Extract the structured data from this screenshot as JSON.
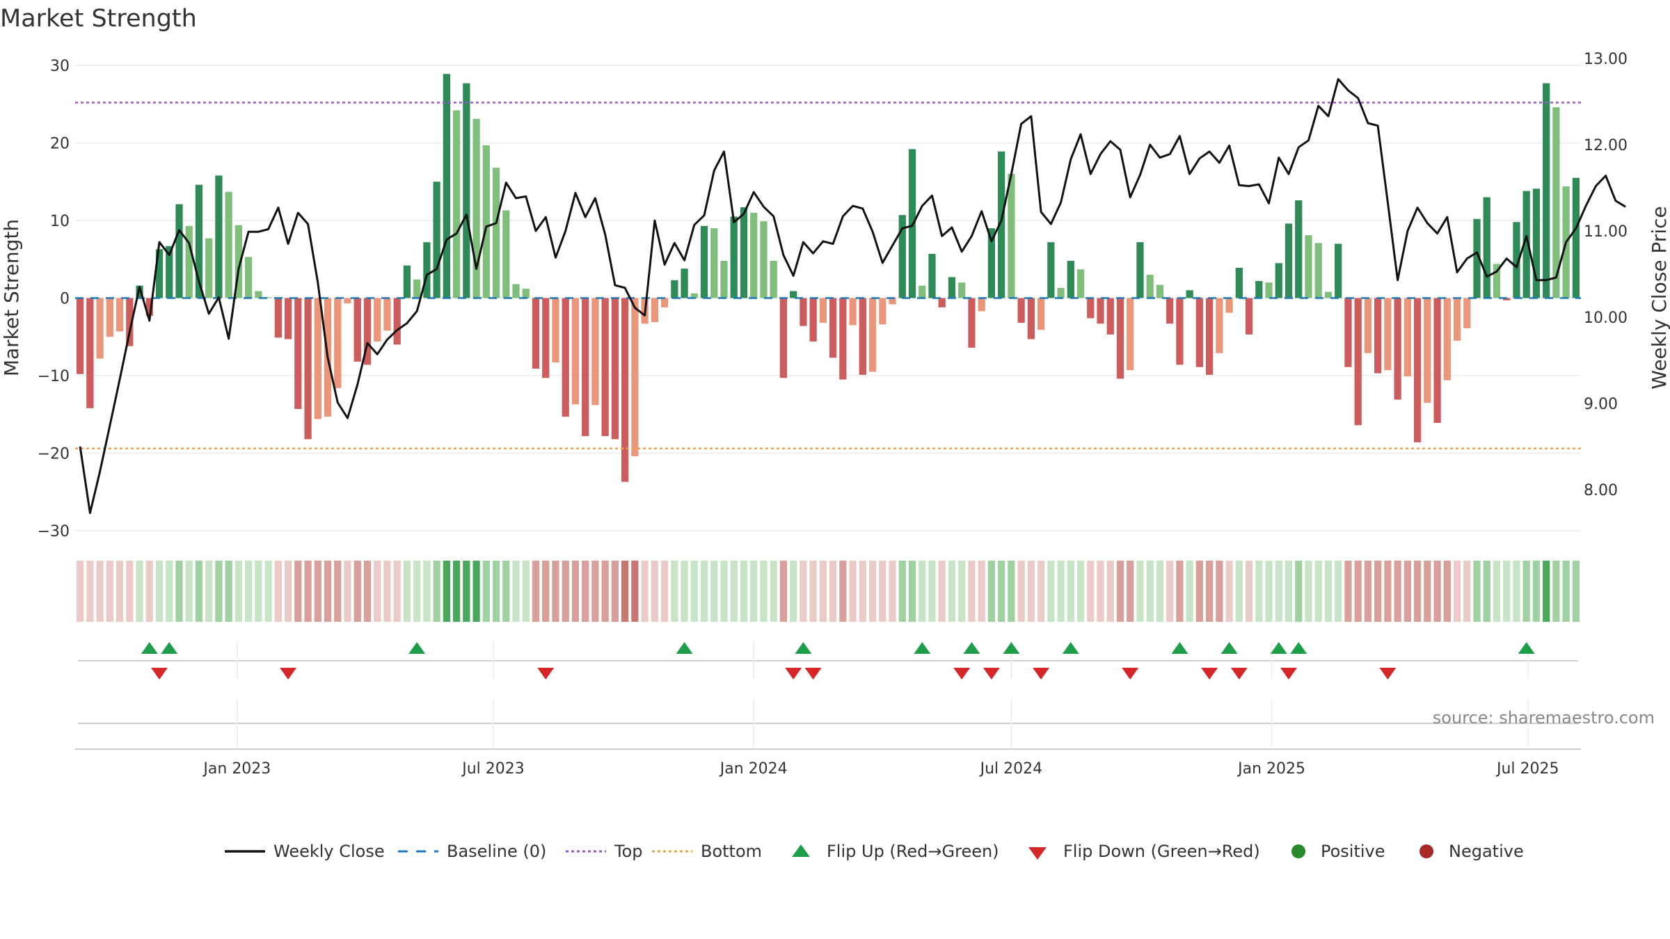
{
  "chart_data": {
    "type": "bar",
    "title": "Market Strength",
    "ylabel": "Market Strength",
    "y2label": "Weekly Close Price",
    "ylim": [
      -30,
      30
    ],
    "y2lim": [
      7.5,
      13.0
    ],
    "yticks": [
      "30",
      "20",
      "10",
      "0",
      "−10",
      "−20",
      "−30"
    ],
    "y2ticks": [
      "13.00",
      "12.00",
      "11.00",
      "10.00",
      "9.00",
      "8.00"
    ],
    "xticks": [
      "Jan 2023",
      "Jul 2023",
      "Jan 2024",
      "Jul 2024",
      "Jan 2025",
      "Jul 2025"
    ],
    "top_threshold": 25.2,
    "bottom_threshold": -19.4,
    "strength": [
      -9.8,
      -14.2,
      -7.8,
      -5.0,
      -4.3,
      -6.2,
      1.6,
      -2.3,
      6.3,
      6.7,
      12.1,
      9.3,
      14.6,
      7.7,
      15.8,
      13.7,
      9.4,
      5.3,
      0.9,
      0.1,
      -5.1,
      -5.3,
      -14.3,
      -18.2,
      -15.6,
      -15.3,
      -11.6,
      -0.7,
      -8.2,
      -8.6,
      -5.6,
      -4.2,
      -6.0,
      4.2,
      2.4,
      7.2,
      15.0,
      28.9,
      24.2,
      27.7,
      23.1,
      19.7,
      16.8,
      11.3,
      1.8,
      1.2,
      -9.1,
      -10.3,
      -8.3,
      -15.3,
      -13.7,
      -17.8,
      -13.8,
      -17.8,
      -18.2,
      -23.7,
      -20.4,
      -3.3,
      -3.1,
      -1.2,
      2.3,
      3.8,
      0.6,
      9.3,
      9.0,
      4.8,
      10.5,
      11.7,
      11.0,
      9.9,
      4.8,
      -10.3,
      0.9,
      -3.6,
      -5.6,
      -3.2,
      -7.7,
      -10.5,
      -3.5,
      -9.9,
      -9.5,
      -3.4,
      -0.8,
      10.7,
      19.2,
      1.6,
      5.7,
      -1.2,
      2.7,
      2.0,
      -6.4,
      -1.7,
      9.0,
      18.9,
      16.0,
      -3.2,
      -5.3,
      -4.1,
      7.2,
      1.3,
      4.8,
      3.7,
      -2.6,
      -3.3,
      -4.7,
      -10.4,
      -9.3,
      7.2,
      3.0,
      1.7,
      -3.3,
      -8.6,
      1.0,
      -8.9,
      -9.9,
      -7.1,
      -1.9,
      3.9,
      -4.7,
      2.2,
      2.0,
      4.5,
      9.6,
      12.6,
      8.1,
      7.1,
      0.8,
      7.0,
      -8.9,
      -16.4,
      -7.1,
      -9.7,
      -9.3,
      -13.1,
      -10.1,
      -18.6,
      -13.5,
      -16.1,
      -10.6,
      -5.5,
      -3.9,
      10.2,
      13.0,
      4.4,
      -0.3,
      9.8,
      13.8,
      14.1,
      27.7,
      24.6,
      14.4,
      15.5
    ],
    "weekly_close": [
      8.5,
      7.73,
      8.21,
      8.74,
      9.28,
      9.83,
      10.35,
      9.96,
      10.87,
      10.72,
      11.01,
      10.86,
      10.41,
      10.04,
      10.23,
      9.75,
      10.56,
      10.99,
      10.99,
      11.02,
      11.27,
      10.85,
      11.21,
      11.08,
      10.4,
      9.53,
      9.01,
      8.83,
      9.22,
      9.7,
      9.57,
      9.74,
      9.85,
      9.93,
      10.07,
      10.49,
      10.56,
      10.9,
      10.97,
      11.19,
      10.56,
      11.05,
      11.09,
      11.56,
      11.38,
      11.4,
      11.0,
      11.16,
      10.69,
      11.0,
      11.44,
      11.16,
      11.38,
      10.96,
      10.37,
      10.34,
      10.11,
      10.02,
      11.12,
      10.61,
      10.86,
      10.66,
      11.07,
      11.18,
      11.7,
      11.92,
      11.1,
      11.2,
      11.45,
      11.28,
      11.17,
      10.72,
      10.48,
      10.87,
      10.74,
      10.88,
      10.85,
      11.17,
      11.29,
      11.26,
      10.99,
      10.63,
      10.83,
      11.03,
      11.06,
      11.29,
      11.41,
      10.94,
      11.04,
      10.76,
      10.94,
      11.23,
      10.88,
      11.12,
      11.66,
      12.24,
      12.33,
      11.22,
      11.08,
      11.33,
      11.83,
      12.12,
      11.66,
      11.89,
      12.04,
      11.94,
      11.39,
      11.65,
      12.0,
      11.85,
      11.89,
      12.1,
      11.66,
      11.84,
      11.92,
      11.79,
      11.99,
      11.53,
      11.52,
      11.54,
      11.32,
      11.85,
      11.66,
      11.97,
      12.05,
      12.45,
      12.33,
      12.76,
      12.63,
      12.54,
      12.25,
      12.22,
      11.33,
      10.43,
      11.0,
      11.27,
      11.09,
      10.97,
      11.16,
      10.52,
      10.68,
      10.75,
      10.47,
      10.53,
      10.68,
      10.58,
      10.94,
      10.43,
      10.43,
      10.46,
      10.87,
      11.03,
      11.29,
      11.52,
      11.64,
      11.35,
      11.28
    ],
    "ticker_strip_levels": [
      -1,
      -1,
      -1,
      -1,
      -1,
      -1,
      1,
      -1,
      1,
      1,
      2,
      1,
      2,
      1,
      2,
      2,
      1,
      1,
      1,
      1,
      -1,
      -1,
      -2,
      -2,
      -2,
      -2,
      -2,
      -1,
      -2,
      -2,
      -1,
      -1,
      -1,
      1,
      1,
      1,
      2,
      3,
      3,
      3,
      3,
      2,
      2,
      2,
      1,
      1,
      -2,
      -2,
      -2,
      -2,
      -2,
      -2,
      -2,
      -2,
      -2,
      -3,
      -3,
      -1,
      -1,
      -1,
      1,
      1,
      1,
      1,
      1,
      1,
      1,
      1,
      1,
      1,
      1,
      -2,
      1,
      -1,
      -1,
      -1,
      -1,
      -2,
      -1,
      -1,
      -1,
      -1,
      -1,
      2,
      2,
      1,
      1,
      -1,
      1,
      1,
      -1,
      -1,
      2,
      2,
      2,
      -1,
      -1,
      -1,
      1,
      1,
      1,
      1,
      -1,
      -1,
      -1,
      -2,
      -2,
      1,
      1,
      1,
      -1,
      -2,
      1,
      -2,
      -2,
      -2,
      -1,
      1,
      -1,
      1,
      1,
      1,
      1,
      2,
      1,
      1,
      1,
      1,
      -2,
      -2,
      -2,
      -2,
      -2,
      -2,
      -2,
      -2,
      -2,
      -2,
      -2,
      -1,
      -1,
      2,
      2,
      1,
      1,
      1,
      2,
      2,
      3,
      2,
      2,
      2
    ],
    "flip_up_weeks": [
      7,
      9,
      34,
      61,
      73,
      85,
      90,
      94,
      100,
      111,
      116,
      121,
      123,
      146
    ],
    "flip_down_weeks": [
      8,
      21,
      47,
      72,
      74,
      89,
      92,
      97,
      106,
      114,
      117,
      122,
      132
    ],
    "start_date": "2022-09-12"
  },
  "source_label": "source: sharemaestro.com",
  "legend": [
    {
      "label": "Weekly Close",
      "kind": "line",
      "color": "#111111"
    },
    {
      "label": "Baseline (0)",
      "kind": "dash",
      "color": "#1f77b4"
    },
    {
      "label": "Top",
      "kind": "dot",
      "color": "#9b59d0"
    },
    {
      "label": "Bottom",
      "kind": "dot",
      "color": "#f0a050"
    },
    {
      "label": "Flip Up (Red→Green)",
      "kind": "tri-up",
      "color": "#1f9e4a"
    },
    {
      "label": "Flip Down (Green→Red)",
      "kind": "tri-down",
      "color": "#d62728"
    },
    {
      "label": "Positive",
      "kind": "circle",
      "color": "#2a8a2a"
    },
    {
      "label": "Negative",
      "kind": "circle",
      "color": "#a82828"
    }
  ],
  "colors": {
    "pos_strong": "#2e8b57",
    "pos_weak": "#7fbf7b",
    "neg_strong": "#cd5c5c",
    "neg_weak": "#e9967a",
    "line": "#111111",
    "baseline": "#1f77b4",
    "top": "#9b59d0",
    "bottom": "#f0a050",
    "flip_up": "#1f9e4a",
    "flip_down": "#d62728"
  }
}
